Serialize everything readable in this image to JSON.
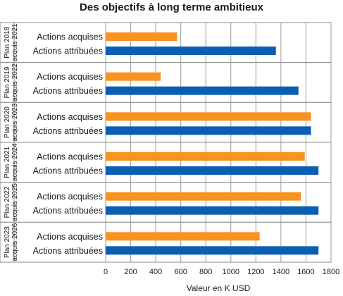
{
  "chart_data": {
    "type": "bar",
    "orientation": "horizontal",
    "title": "Des objectifs à long terme ambitieux",
    "xlabel": "Valeur en K USD",
    "ylabel": "",
    "xlim": [
      0,
      1800
    ],
    "xticks": [
      0,
      200,
      400,
      600,
      800,
      1000,
      1200,
      1400,
      1600,
      1800
    ],
    "grid": true,
    "groups": [
      {
        "label_line1": "Plan 2018",
        "label_line2": "acquis 2021",
        "bars": [
          {
            "label": "Actions acquises",
            "value": 570
          },
          {
            "label": "Actions attribuées",
            "value": 1360
          }
        ]
      },
      {
        "label_line1": "Plan 2019",
        "label_line2": "acquis 2022",
        "bars": [
          {
            "label": "Actions acquises",
            "value": 440
          },
          {
            "label": "Actions attribuées",
            "value": 1540
          }
        ]
      },
      {
        "label_line1": "Plan 2020",
        "label_line2": "acquis 2023",
        "bars": [
          {
            "label": "Actions acquises",
            "value": 1640
          },
          {
            "label": "Actions attribuées",
            "value": 1640
          }
        ]
      },
      {
        "label_line1": "Plan 2021",
        "label_line2": "acquis 2024",
        "bars": [
          {
            "label": "Actions acquises",
            "value": 1590
          },
          {
            "label": "Actions attribuées",
            "value": 1700
          }
        ]
      },
      {
        "label_line1": "Plan 2022",
        "label_line2": "acquis 2025",
        "bars": [
          {
            "label": "Actions acquises",
            "value": 1560
          },
          {
            "label": "Actions attribuées",
            "value": 1700
          }
        ]
      },
      {
        "label_line1": "Plan 2023",
        "label_line2": "acquis 2026",
        "bars": [
          {
            "label": "Actions acquises",
            "value": 1230
          },
          {
            "label": "Actions attribuées",
            "value": 1700
          }
        ]
      }
    ],
    "colors": {
      "Actions acquises": "#f7931e",
      "Actions attribuées": "#0b5fb3"
    }
  }
}
